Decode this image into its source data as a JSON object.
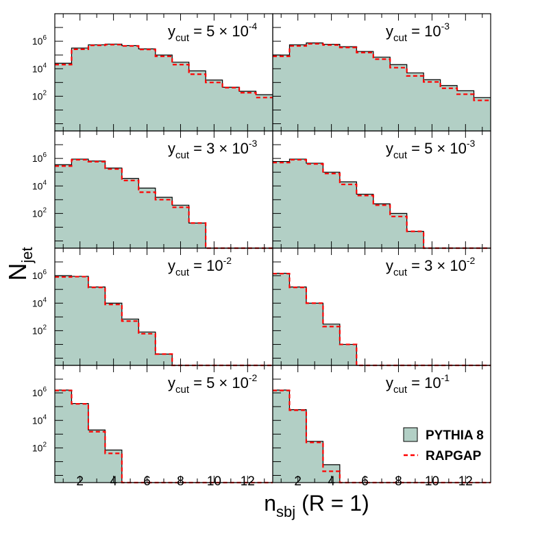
{
  "chart_data": {
    "type": "bar",
    "ylabel_main": "N",
    "ylabel_sub": "jet",
    "xlabel_main": "n",
    "xlabel_sub": "sbj",
    "xlabel_rest": " (R = 1)",
    "y_scale": "log",
    "ylim": [
      0.3,
      100000000
    ],
    "xlim": [
      0.5,
      13.5
    ],
    "x_ticks": [
      2,
      4,
      6,
      8,
      10,
      12
    ],
    "y_tick_labels": [
      {
        "value": 100,
        "base": "10",
        "exp": "2"
      },
      {
        "value": 10000,
        "base": "10",
        "exp": "4"
      },
      {
        "value": 1000000,
        "base": "10",
        "exp": "6"
      }
    ],
    "legend": {
      "position": "bottom-right",
      "items": [
        "PYTHIA 8",
        "RAPGAP"
      ]
    },
    "bins": [
      1,
      2,
      3,
      4,
      5,
      6,
      7,
      8,
      9,
      10,
      11,
      12,
      13
    ],
    "series_styles": {
      "PYTHIA 8": {
        "fill": "#b2cfc5",
        "line": "#000000"
      },
      "RAPGAP": {
        "line": "#ff0000",
        "dash": "dashed"
      }
    },
    "panels": [
      {
        "label_main": "y",
        "label_sub": "cut",
        "label_eq": " = 5 × 10",
        "label_exp": "-4",
        "pythia": [
          25000,
          320000,
          550000,
          620000,
          480000,
          280000,
          100000,
          30000,
          7000,
          1500,
          450,
          230,
          130
        ],
        "rapgap": [
          20000,
          260000,
          500000,
          560000,
          450000,
          250000,
          80000,
          20000,
          4000,
          1000,
          420,
          180,
          80
        ]
      },
      {
        "label_main": "y",
        "label_sub": "cut",
        "label_eq": " = 10",
        "label_exp": "-3",
        "pythia": [
          100000,
          550000,
          750000,
          600000,
          400000,
          180000,
          70000,
          20000,
          5000,
          1600,
          600,
          250,
          80
        ],
        "rapgap": [
          80000,
          450000,
          650000,
          530000,
          350000,
          150000,
          50000,
          12000,
          3000,
          1100,
          380,
          140,
          50
        ]
      },
      {
        "label_main": "y",
        "label_sub": "cut",
        "label_eq": " = 3 × 10",
        "label_exp": "-3",
        "pythia": [
          350000,
          900000,
          650000,
          200000,
          35000,
          7000,
          1500,
          400,
          20,
          0,
          0,
          0,
          0
        ],
        "rapgap": [
          280000,
          800000,
          580000,
          170000,
          25000,
          3500,
          1000,
          280,
          20,
          0,
          0,
          0,
          0
        ]
      },
      {
        "label_main": "y",
        "label_sub": "cut",
        "label_eq": " = 5 × 10",
        "label_exp": "-3",
        "pythia": [
          600000,
          900000,
          450000,
          100000,
          20000,
          2500,
          500,
          100,
          5,
          0,
          0,
          0,
          0
        ],
        "rapgap": [
          500000,
          800000,
          400000,
          80000,
          13000,
          2000,
          400,
          60,
          5,
          0,
          0,
          0,
          0
        ]
      },
      {
        "label_main": "y",
        "label_sub": "cut",
        "label_eq": " = 10",
        "label_exp": "-2",
        "pythia": [
          1000000,
          900000,
          150000,
          10000,
          700,
          80,
          2,
          0,
          0,
          0,
          0,
          0,
          0
        ],
        "rapgap": [
          800000,
          850000,
          140000,
          8000,
          500,
          60,
          2,
          0,
          0,
          0,
          0,
          0,
          0
        ]
      },
      {
        "label_main": "y",
        "label_sub": "cut",
        "label_eq": " = 3 × 10",
        "label_exp": "-2",
        "pythia": [
          1500000,
          150000,
          10000,
          300,
          10,
          0,
          0,
          0,
          0,
          0,
          0,
          0,
          0
        ],
        "rapgap": [
          1400000,
          140000,
          10000,
          200,
          10,
          0,
          0,
          0,
          0,
          0,
          0,
          0,
          0
        ]
      },
      {
        "label_main": "y",
        "label_sub": "cut",
        "label_eq": " = 5 × 10",
        "label_exp": "-2",
        "pythia": [
          1600000,
          170000,
          2000,
          70,
          0,
          0,
          0,
          0,
          0,
          0,
          0,
          0,
          0
        ],
        "rapgap": [
          1500000,
          160000,
          1500,
          40,
          0,
          0,
          0,
          0,
          0,
          0,
          0,
          0,
          0
        ]
      },
      {
        "label_main": "y",
        "label_sub": "cut",
        "label_eq": " = 10",
        "label_exp": "-1",
        "pythia": [
          1600000,
          60000,
          300,
          6,
          0,
          0,
          0,
          0,
          0,
          0,
          0,
          0,
          0
        ],
        "rapgap": [
          1500000,
          55000,
          250,
          2,
          0,
          0,
          0,
          0,
          0,
          0,
          0,
          0,
          0
        ]
      }
    ]
  }
}
